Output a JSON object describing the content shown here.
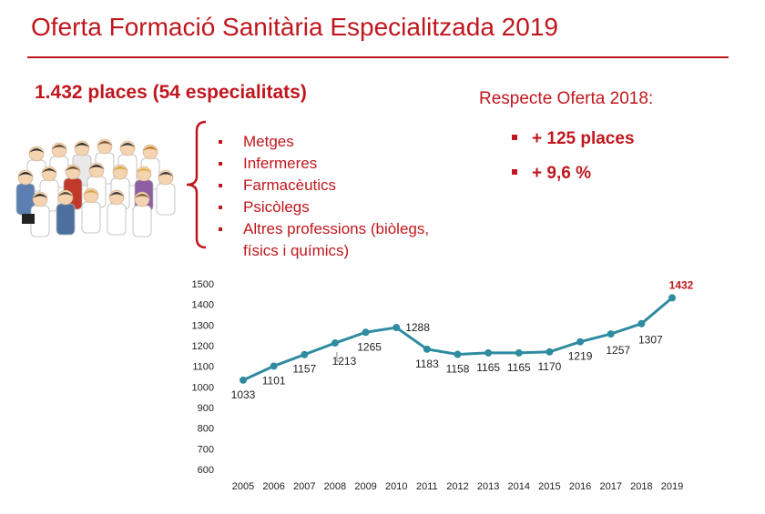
{
  "header": {
    "title": "Oferta Formació Sanitària Especialitzada 2019"
  },
  "summary": {
    "headline": "1.432 places (54 especialitats)"
  },
  "professions": {
    "items": [
      "Metges",
      "Infermeres",
      "Farmacèutics",
      "Psicòlegs",
      "Altres professions (biòlegs,"
    ],
    "continuation": "físics i químics)"
  },
  "comparison": {
    "title": "Respecte Oferta 2018:",
    "places_delta": "+ 125 places",
    "percent_delta": "+ 9,6 %"
  },
  "illustration": {
    "icon": "group-of-healthcare-workers-icon"
  },
  "colors": {
    "accent": "#c0171e",
    "series": "#2e8ba0",
    "axis_text": "#222222"
  },
  "chart_data": {
    "type": "line",
    "title": "",
    "xlabel": "",
    "ylabel": "",
    "x": [
      "2005",
      "2006",
      "2007",
      "2008",
      "2009",
      "2010",
      "2011",
      "2012",
      "2013",
      "2014",
      "2015",
      "2016",
      "2017",
      "2018",
      "2019"
    ],
    "series": [
      {
        "values": [
          1033,
          1101,
          1157,
          1213,
          1265,
          1288,
          1183,
          1158,
          1165,
          1165,
          1170,
          1219,
          1257,
          1307,
          1432
        ],
        "data_labels": [
          "1033",
          "1101",
          "1157",
          "1213",
          "1265",
          "1288",
          "1183",
          "1158",
          "1165",
          "1165",
          "1170",
          "1219",
          "1257",
          "1307",
          "1432"
        ]
      }
    ],
    "highlighted_label": "1432",
    "ylim": [
      600,
      1500
    ],
    "yticks": [
      "600",
      "700",
      "800",
      "900",
      "1000",
      "1100",
      "1200",
      "1300",
      "1400",
      "1500"
    ],
    "grid": false,
    "legend": "none"
  }
}
